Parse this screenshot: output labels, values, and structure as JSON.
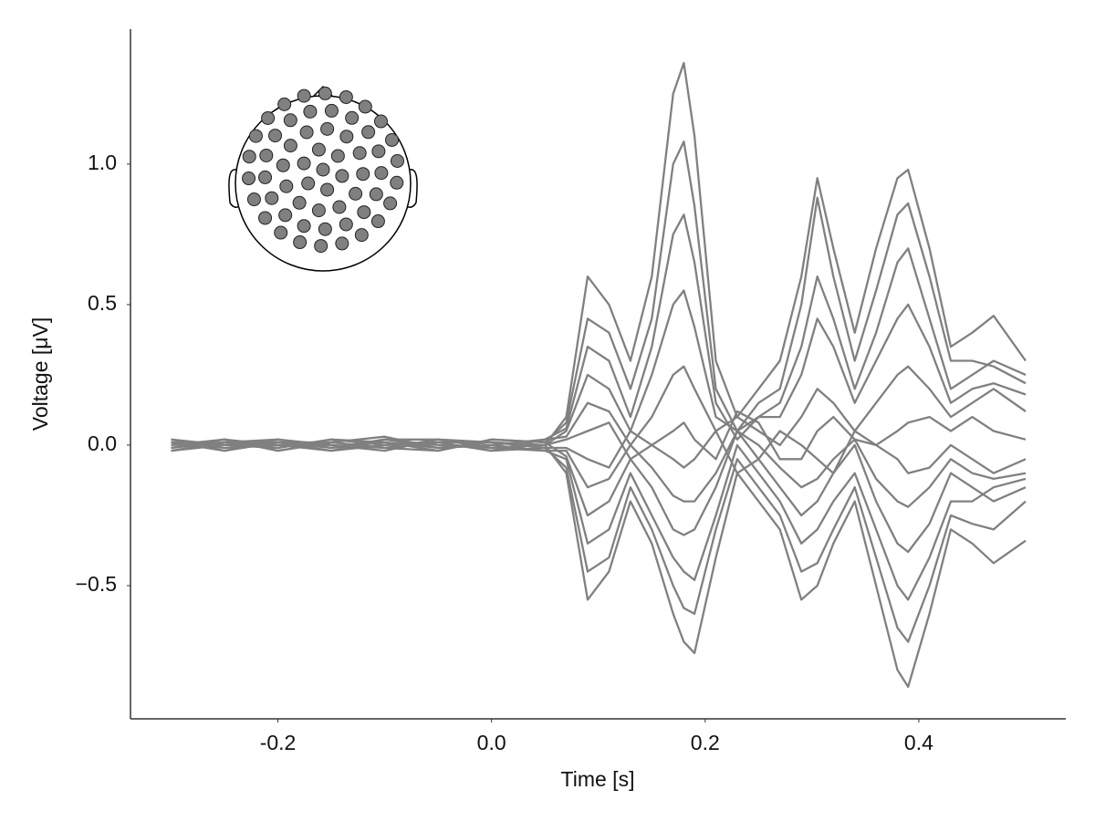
{
  "chart_data": {
    "type": "line",
    "xlabel": "Time [s]",
    "ylabel": "Voltage [μV]",
    "x": [
      -0.3,
      -0.25,
      -0.2,
      -0.15,
      -0.1,
      -0.05,
      0,
      0.05,
      0.07,
      0.09,
      0.11,
      0.13,
      0.15,
      0.17,
      0.18,
      0.19,
      0.21,
      0.23,
      0.25,
      0.27,
      0.29,
      0.305,
      0.32,
      0.34,
      0.36,
      0.38,
      0.39,
      0.41,
      0.43,
      0.45,
      0.47,
      0.5
    ],
    "color": "#808080",
    "series": [
      {
        "values": [
          0.01,
          -0.02,
          0.02,
          -0.01,
          0.02,
          -0.01,
          0.01,
          0.0,
          0.1,
          0.6,
          0.5,
          0.3,
          0.6,
          1.25,
          1.36,
          1.1,
          0.3,
          0.1,
          0.2,
          0.3,
          0.6,
          0.95,
          0.7,
          0.4,
          0.7,
          0.95,
          0.98,
          0.7,
          0.35,
          0.4,
          0.46,
          0.3
        ]
      },
      {
        "values": [
          -0.01,
          0.02,
          -0.02,
          0.01,
          -0.01,
          0.02,
          -0.01,
          0.0,
          -0.1,
          -0.55,
          -0.45,
          -0.2,
          -0.35,
          -0.6,
          -0.7,
          -0.74,
          -0.4,
          -0.1,
          -0.2,
          -0.3,
          -0.55,
          -0.5,
          -0.35,
          -0.2,
          -0.5,
          -0.8,
          -0.86,
          -0.6,
          -0.3,
          -0.35,
          -0.42,
          -0.34
        ]
      },
      {
        "values": [
          0.02,
          0.0,
          -0.01,
          0.02,
          0.01,
          -0.02,
          0.02,
          0.01,
          0.08,
          0.45,
          0.4,
          0.2,
          0.45,
          1.0,
          1.08,
          0.85,
          0.2,
          0.05,
          0.15,
          0.2,
          0.5,
          0.88,
          0.6,
          0.3,
          0.55,
          0.82,
          0.86,
          0.6,
          0.3,
          0.3,
          0.28,
          0.22
        ]
      },
      {
        "values": [
          -0.02,
          0.01,
          0.01,
          -0.02,
          0.0,
          0.01,
          -0.02,
          -0.01,
          -0.08,
          -0.45,
          -0.4,
          -0.15,
          -0.3,
          -0.5,
          -0.58,
          -0.6,
          -0.3,
          -0.05,
          -0.15,
          -0.25,
          -0.45,
          -0.42,
          -0.3,
          -0.15,
          -0.4,
          -0.65,
          -0.7,
          -0.5,
          -0.25,
          -0.28,
          -0.3,
          -0.2
        ]
      },
      {
        "values": [
          0.0,
          0.02,
          -0.02,
          0.01,
          0.03,
          -0.01,
          0.0,
          0.02,
          0.06,
          0.35,
          0.3,
          0.1,
          0.35,
          0.75,
          0.82,
          0.65,
          0.15,
          0.02,
          0.1,
          0.15,
          0.35,
          0.6,
          0.45,
          0.2,
          0.4,
          0.65,
          0.7,
          0.45,
          0.2,
          0.25,
          0.3,
          0.25
        ]
      },
      {
        "values": [
          0.01,
          -0.01,
          0.0,
          -0.02,
          0.02,
          0.0,
          -0.01,
          -0.02,
          -0.05,
          -0.35,
          -0.3,
          -0.1,
          -0.25,
          -0.4,
          -0.45,
          -0.48,
          -0.25,
          0.0,
          -0.1,
          -0.2,
          -0.35,
          -0.3,
          -0.2,
          -0.1,
          -0.3,
          -0.5,
          -0.55,
          -0.4,
          -0.2,
          -0.2,
          -0.15,
          -0.12
        ]
      },
      {
        "values": [
          -0.01,
          0.01,
          0.02,
          0.0,
          -0.02,
          0.02,
          0.01,
          0.0,
          0.05,
          0.25,
          0.2,
          0.05,
          0.25,
          0.5,
          0.55,
          0.42,
          0.1,
          0.05,
          0.1,
          0.1,
          0.25,
          0.45,
          0.35,
          0.15,
          0.3,
          0.45,
          0.5,
          0.35,
          0.15,
          0.2,
          0.22,
          0.18
        ]
      },
      {
        "values": [
          0.02,
          -0.02,
          0.01,
          0.01,
          -0.01,
          -0.02,
          0.02,
          0.01,
          -0.04,
          -0.25,
          -0.2,
          -0.05,
          -0.15,
          -0.3,
          -0.32,
          -0.3,
          -0.15,
          0.05,
          -0.05,
          -0.15,
          -0.25,
          -0.2,
          -0.1,
          0.0,
          -0.2,
          -0.35,
          -0.38,
          -0.28,
          -0.1,
          -0.15,
          -0.2,
          -0.15
        ]
      },
      {
        "values": [
          0.0,
          0.01,
          -0.01,
          0.02,
          0.0,
          0.01,
          -0.02,
          0.02,
          0.03,
          0.15,
          0.12,
          0.0,
          0.1,
          0.25,
          0.28,
          0.2,
          0.05,
          0.1,
          0.05,
          0.0,
          0.1,
          0.2,
          0.15,
          0.05,
          0.15,
          0.25,
          0.28,
          0.2,
          0.1,
          0.15,
          0.2,
          0.12
        ]
      },
      {
        "values": [
          -0.02,
          0.0,
          0.02,
          -0.01,
          0.01,
          -0.01,
          0.0,
          -0.02,
          -0.02,
          -0.15,
          -0.12,
          0.0,
          -0.08,
          -0.18,
          -0.2,
          -0.2,
          -0.1,
          0.05,
          0.0,
          -0.08,
          -0.15,
          -0.12,
          -0.05,
          0.02,
          -0.12,
          -0.2,
          -0.22,
          -0.15,
          -0.05,
          -0.1,
          -0.12,
          -0.1
        ]
      },
      {
        "values": [
          0.01,
          0.0,
          0.01,
          -0.01,
          0.02,
          0.02,
          -0.01,
          0.0,
          0.02,
          0.05,
          0.08,
          -0.05,
          0.0,
          0.05,
          0.08,
          0.02,
          -0.05,
          0.12,
          0.08,
          -0.05,
          -0.05,
          0.05,
          0.1,
          0.02,
          0.0,
          0.05,
          0.08,
          0.1,
          0.05,
          0.1,
          0.05,
          0.02
        ]
      },
      {
        "values": [
          -0.01,
          0.02,
          0.0,
          0.0,
          -0.01,
          0.01,
          0.01,
          -0.01,
          -0.01,
          -0.05,
          -0.08,
          0.05,
          0.0,
          -0.05,
          -0.08,
          -0.05,
          0.05,
          -0.1,
          -0.05,
          0.05,
          0.0,
          -0.05,
          -0.1,
          0.05,
          0.0,
          -0.05,
          -0.1,
          -0.08,
          0.0,
          -0.05,
          -0.1,
          -0.05
        ]
      }
    ],
    "xlim": [
      -0.338,
      0.5376
    ],
    "ylim": [
      -0.974,
      1.48
    ],
    "xticks": [
      -0.2,
      {
        "value": 0,
        "label": "0.0"
      },
      0.2,
      0.4
    ],
    "yticks": [
      {
        "value": -0.5,
        "label": "−0.5"
      },
      {
        "value": 0,
        "label": "0.0"
      },
      0.5,
      {
        "value": 1,
        "label": "1.0"
      }
    ]
  }
}
